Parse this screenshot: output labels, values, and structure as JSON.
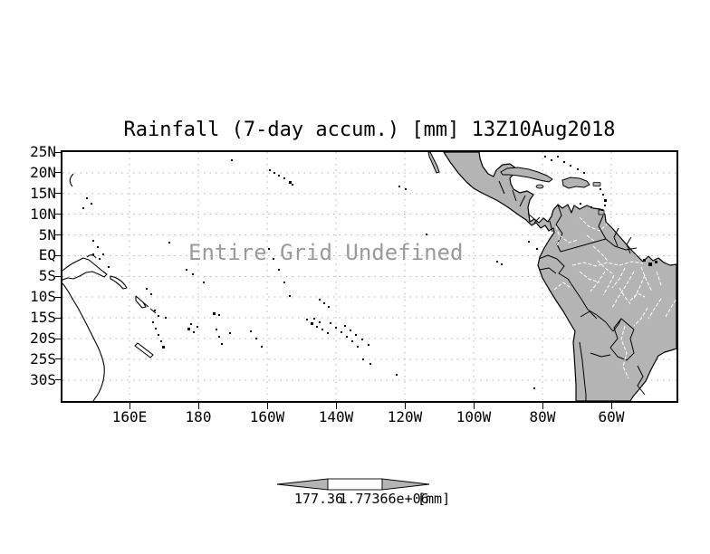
{
  "title": "Rainfall (7-day accum.) [mm] 13Z10Aug2018",
  "overlay": {
    "message": "Entire Grid Undefined"
  },
  "axes": {
    "lat": [
      "25N",
      "20N",
      "15N",
      "10N",
      "5N",
      "EQ",
      "5S",
      "10S",
      "15S",
      "20S",
      "25S",
      "30S"
    ],
    "lon": [
      "160E",
      "180",
      "160W",
      "140W",
      "120W",
      "100W",
      "80W",
      "60W"
    ]
  },
  "colorbar": {
    "left_label": "177.36",
    "right_label": "1.77366e+06",
    "units": "[mm]"
  },
  "colors": {
    "land": "#b4b4b4",
    "grid": "#b4b4b4",
    "coast": "#000000",
    "rivers": "#ffffff",
    "overlay_text": "#9a9a9a",
    "frame": "#000000"
  },
  "chart_data": {
    "type": "heatmap",
    "title": "Rainfall (7-day accum.) [mm] 13Z10Aug2018",
    "variable": "Rainfall (7-day accum.)",
    "units": "mm",
    "valid_time": "13Z10Aug2018",
    "annotation": "Entire Grid Undefined",
    "values": [],
    "x_ticks": [
      "160E",
      "180",
      "160W",
      "140W",
      "120W",
      "100W",
      "80W",
      "60W"
    ],
    "y_ticks": [
      "25N",
      "20N",
      "15N",
      "10N",
      "5N",
      "EQ",
      "5S",
      "10S",
      "15S",
      "20S",
      "25S",
      "30S"
    ],
    "grid": true,
    "legend_position": "bottom",
    "colorbar_labels": [
      "177.36",
      "1.77366e+06"
    ]
  }
}
